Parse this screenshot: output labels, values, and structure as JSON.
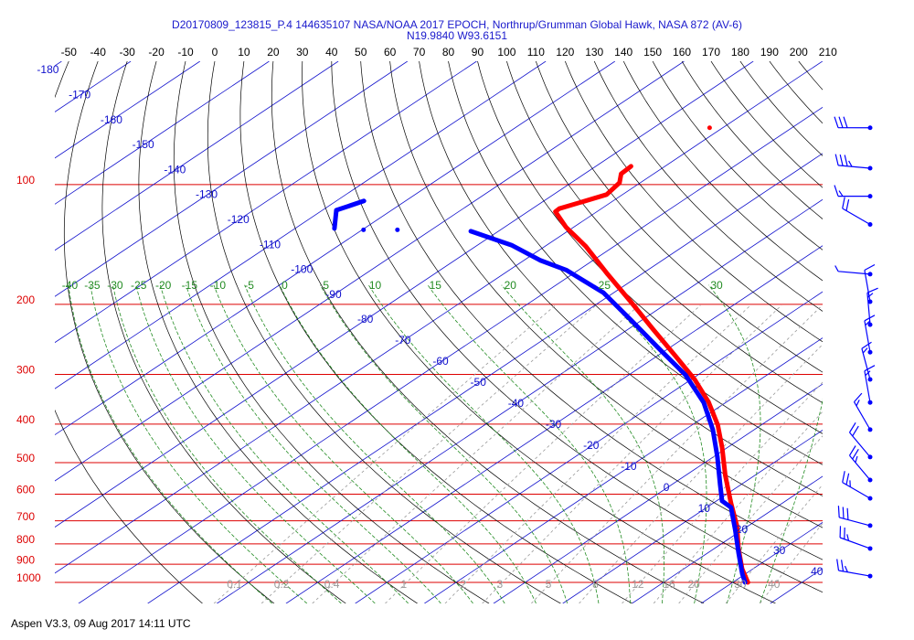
{
  "chart_data": {
    "type": "skewt",
    "title": "D20170809_123815_P.4 144635107 NASA/NOAA 2017 EPOCH, Northrup/Grumman Global Hawk, NASA 872 (AV-6)",
    "subtitle": "N19.9840 W93.6151",
    "footer": "Aspen V3.3, 09 Aug 2017  14:11 UTC",
    "ylim": [
      1000,
      49
    ],
    "log_y": true,
    "yticks": [
      100,
      200,
      300,
      400,
      500,
      600,
      700,
      800,
      900,
      1000
    ],
    "ytick_color": "#dd0000",
    "xlim": [
      -68,
      43
    ],
    "isotherms": {
      "color": "#1010cc",
      "values": [
        -180,
        -170,
        -160,
        -150,
        -140,
        -130,
        -120,
        -110,
        -100,
        -90,
        -80,
        -70,
        -60,
        -50,
        -40,
        -30,
        -20,
        -10,
        0,
        10,
        20,
        30,
        40
      ]
    },
    "dry_adiabats": {
      "color": "#000000",
      "values": [
        -50,
        -40,
        -30,
        -20,
        -10,
        0,
        10,
        20,
        30,
        40,
        50,
        60,
        70,
        80,
        90,
        100,
        110,
        120,
        130,
        140,
        150,
        160,
        170,
        180,
        190,
        200,
        210
      ]
    },
    "moist_adiabats": {
      "color": "#228b22",
      "values": [
        -40,
        -35,
        -30,
        -25,
        -20,
        -15,
        -10,
        -5,
        0,
        5,
        10,
        15,
        20,
        25,
        30,
        35
      ]
    },
    "mixing_ratios": {
      "color": "#999999",
      "values": [
        0.1,
        0.2,
        0.4,
        1,
        2,
        3,
        5,
        8,
        12,
        16,
        20,
        30,
        40
      ]
    },
    "series": [
      {
        "color": "#ff0000",
        "pressure": [
          1000,
          924,
          822,
          720,
          631,
          538,
          459,
          402,
          352,
          309,
          271,
          231,
          197,
          168,
          143,
          128,
          117,
          115,
          110,
          106,
          99,
          94,
          90
        ],
        "values": [
          32.2,
          28.4,
          23.5,
          18.3,
          12.5,
          5.7,
          -0.7,
          -6.3,
          -12.6,
          -19.5,
          -27.1,
          -36.4,
          -45.6,
          -54.9,
          -64.1,
          -71.1,
          -76.0,
          -76.1,
          -74.0,
          -72.3,
          -73.0,
          -74.7,
          -74.9
        ]
      },
      {
        "color": "#0000ff",
        "pressure": [
          1000,
          953,
          844,
          740,
          648,
          624,
          568,
          484,
          413,
          353,
          301,
          257,
          219,
          187,
          164,
          155,
          142,
          131
        ],
        "values": [
          31.8,
          29.6,
          24.5,
          19.1,
          13.5,
          10.8,
          7.0,
          0.6,
          -6.0,
          -13.2,
          -21.8,
          -31.7,
          -41.6,
          -51.5,
          -61.8,
          -67.7,
          -75.1,
          -84.0
        ]
      },
      {
        "color": "#0000ff",
        "pressure": [
          110,
          116,
          129
        ],
        "values": [
          -106.0,
          -108.0,
          -104.3
        ]
      }
    ],
    "points": [
      {
        "color": "#0000ff",
        "pressure": [
          130,
          130
        ],
        "values": [
          -99.8,
          -94.9
        ]
      },
      {
        "color": "#ff0000",
        "pressure": [
          72
        ],
        "values": [
          -71.9
        ]
      }
    ],
    "wind_barbs": {
      "color": "#0000ff",
      "pressure": [
        72,
        91,
        107,
        126,
        168,
        197,
        225,
        264,
        309,
        353,
        413,
        484,
        553,
        615,
        720,
        822,
        964
      ],
      "direction": [
        270,
        275,
        270,
        300,
        275,
        350,
        355,
        350,
        345,
        350,
        330,
        320,
        320,
        300,
        285,
        290,
        280
      ],
      "speed": [
        30,
        35,
        15,
        20,
        5,
        10,
        15,
        15,
        15,
        15,
        15,
        20,
        25,
        25,
        30,
        25,
        25
      ]
    }
  }
}
